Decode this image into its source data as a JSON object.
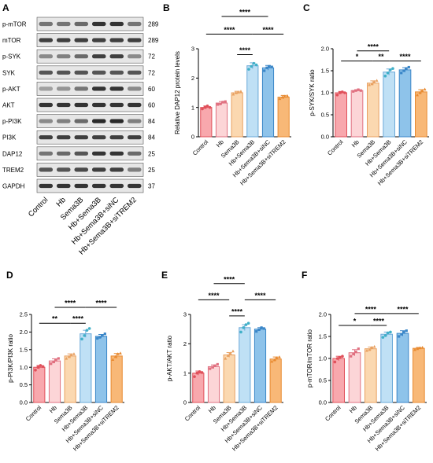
{
  "colors": {
    "fill": [
      "#f8a8ad",
      "#fcd5d7",
      "#fbd8b0",
      "#bfe0f5",
      "#8ec3ea",
      "#f8b877"
    ],
    "stroke": [
      "#e0505a",
      "#e07080",
      "#e8a060",
      "#6aa8d8",
      "#3a86c8",
      "#e88a30"
    ],
    "dot": [
      "#e0505a",
      "#e07080",
      "#e8a060",
      "#40b0c8",
      "#3a86c8",
      "#e88a30"
    ]
  },
  "blot": {
    "letter": "A",
    "rows": [
      {
        "name": "p-mTOR",
        "kda": "289"
      },
      {
        "name": "mTOR",
        "kda": "289"
      },
      {
        "name": "p-SYK",
        "kda": "72"
      },
      {
        "name": "SYK",
        "kda": "72"
      },
      {
        "name": "p-AKT",
        "kda": "60"
      },
      {
        "name": "AKT",
        "kda": "60"
      },
      {
        "name": "p-PI3K",
        "kda": "84"
      },
      {
        "name": "PI3K",
        "kda": "84"
      },
      {
        "name": "DAP12",
        "kda": "25"
      },
      {
        "name": "TREM2",
        "kda": "25"
      },
      {
        "name": "GAPDH",
        "kda": "37"
      }
    ],
    "intensity": [
      [
        0.55,
        0.55,
        0.6,
        0.85,
        0.85,
        0.55
      ],
      [
        0.8,
        0.8,
        0.8,
        0.8,
        0.8,
        0.8
      ],
      [
        0.45,
        0.5,
        0.6,
        0.8,
        0.8,
        0.45
      ],
      [
        0.7,
        0.7,
        0.7,
        0.7,
        0.7,
        0.7
      ],
      [
        0.35,
        0.4,
        0.55,
        0.85,
        0.85,
        0.45
      ],
      [
        0.85,
        0.85,
        0.85,
        0.85,
        0.85,
        0.85
      ],
      [
        0.45,
        0.5,
        0.6,
        0.9,
        0.9,
        0.5
      ],
      [
        0.8,
        0.8,
        0.8,
        0.8,
        0.8,
        0.8
      ],
      [
        0.55,
        0.6,
        0.7,
        0.85,
        0.85,
        0.6
      ],
      [
        0.7,
        0.7,
        0.75,
        0.8,
        0.8,
        0.5
      ],
      [
        0.85,
        0.85,
        0.85,
        0.85,
        0.85,
        0.85
      ]
    ],
    "groups": [
      "Control",
      "Hb",
      "Sema3B",
      "Hb+Sema3B",
      "Hb+Sema3B+siNC",
      "Hb+Sema3B+siTREM2"
    ]
  },
  "chart_data": [
    {
      "letter": "B",
      "type": "bar",
      "ylabel": "Relative DAP12 protein levels",
      "categories": [
        "Control",
        "Hb",
        "Sema3B",
        "Hb+Sema3B",
        "Hb+Sema3B+siNC",
        "Hb+Sema3B+siTREM2"
      ],
      "values": [
        1.0,
        1.15,
        1.5,
        2.42,
        2.35,
        1.35
      ],
      "errors": [
        0.05,
        0.05,
        0.05,
        0.1,
        0.08,
        0.06
      ],
      "points": [
        [
          0.95,
          1.0,
          1.05,
          1.0
        ],
        [
          1.1,
          1.12,
          1.18,
          1.2
        ],
        [
          1.45,
          1.5,
          1.52,
          1.55
        ],
        [
          2.3,
          2.4,
          2.5,
          2.45
        ],
        [
          2.25,
          2.35,
          2.4,
          2.38
        ],
        [
          1.3,
          1.35,
          1.38,
          1.4
        ]
      ],
      "ylim": [
        0,
        3
      ],
      "yticks": [
        "0",
        "1",
        "2",
        "3"
      ],
      "sig": [
        {
          "from": 0,
          "to": 3,
          "label": "****",
          "y": 3.5
        },
        {
          "from": 2,
          "to": 3,
          "label": "****",
          "y": 2.8
        },
        {
          "from": 3,
          "to": 5,
          "label": "****",
          "y": 3.5
        },
        {
          "from": 1,
          "to": 4,
          "label": "****",
          "y": 4.1
        }
      ]
    },
    {
      "letter": "C",
      "type": "bar",
      "ylabel": "p-SYK/SYK ratio",
      "categories": [
        "Control",
        "Hb",
        "Sema3B",
        "Hb+Sema3B",
        "Hb+Sema3B+siNC",
        "Hb+Sema3B+siTREM2"
      ],
      "values": [
        1.0,
        1.05,
        1.22,
        1.47,
        1.52,
        1.02
      ],
      "errors": [
        0.03,
        0.02,
        0.05,
        0.07,
        0.05,
        0.05
      ],
      "points": [
        [
          0.95,
          1.0,
          1.02,
          1.0
        ],
        [
          1.03,
          1.05,
          1.07,
          1.05
        ],
        [
          1.18,
          1.2,
          1.25,
          1.28
        ],
        [
          1.38,
          1.45,
          1.52,
          1.55
        ],
        [
          1.45,
          1.5,
          1.55,
          1.58
        ],
        [
          0.95,
          1.0,
          1.05,
          1.08
        ]
      ],
      "ylim": [
        0,
        2.0
      ],
      "yticks": [
        "0.0",
        "0.5",
        "1.0",
        "1.5",
        "2.0"
      ],
      "sig": [
        {
          "from": 0,
          "to": 2,
          "label": "*",
          "y": 1.72
        },
        {
          "from": 2,
          "to": 3,
          "label": "**",
          "y": 1.72
        },
        {
          "from": 3,
          "to": 5,
          "label": "****",
          "y": 1.72
        },
        {
          "from": 1,
          "to": 3,
          "label": "****",
          "y": 1.95
        }
      ]
    },
    {
      "letter": "D",
      "type": "bar",
      "ylabel": "p-PI3K/PI3K ratio",
      "categories": [
        "Control",
        "Hb",
        "Sema3B",
        "Hb+Sema3B",
        "Hb+Sema3B+siNC",
        "Hb+Sema3B+siTREM2"
      ],
      "values": [
        1.0,
        1.18,
        1.32,
        1.95,
        1.88,
        1.32
      ],
      "errors": [
        0.05,
        0.06,
        0.06,
        0.1,
        0.05,
        0.07
      ],
      "points": [
        [
          0.92,
          1.0,
          1.05,
          1.02
        ],
        [
          1.1,
          1.15,
          1.2,
          1.25
        ],
        [
          1.25,
          1.3,
          1.35,
          1.38
        ],
        [
          1.8,
          1.9,
          2.05,
          2.1
        ],
        [
          1.82,
          1.85,
          1.9,
          1.95
        ],
        [
          1.22,
          1.3,
          1.38,
          1.4
        ]
      ],
      "ylim": [
        0,
        2.5
      ],
      "yticks": [
        "0.0",
        "0.5",
        "1.0",
        "1.5",
        "2.0",
        "2.5"
      ],
      "sig": [
        {
          "from": 0,
          "to": 2,
          "label": "**",
          "y": 2.25
        },
        {
          "from": 2,
          "to": 3,
          "label": "****",
          "y": 2.25
        },
        {
          "from": 1,
          "to": 3,
          "label": "****",
          "y": 2.7
        },
        {
          "from": 3,
          "to": 5,
          "label": "****",
          "y": 2.7
        }
      ]
    },
    {
      "letter": "E",
      "type": "bar",
      "ylabel": "p-AKT/AKT ratio",
      "categories": [
        "Control",
        "Hb",
        "Sema3B",
        "Hb+Sema3B",
        "Hb+Sema3B+siNC",
        "Hb+Sema3B+siTREM2"
      ],
      "values": [
        1.0,
        1.22,
        1.62,
        2.55,
        2.5,
        1.48
      ],
      "errors": [
        0.07,
        0.06,
        0.08,
        0.1,
        0.05,
        0.07
      ],
      "points": [
        [
          0.88,
          1.0,
          1.05,
          1.02
        ],
        [
          1.15,
          1.2,
          1.25,
          1.3
        ],
        [
          1.5,
          1.6,
          1.68,
          1.75
        ],
        [
          2.4,
          2.55,
          2.65,
          2.7
        ],
        [
          2.42,
          2.48,
          2.55,
          2.52
        ],
        [
          1.4,
          1.45,
          1.52,
          1.55
        ]
      ],
      "ylim": [
        0,
        3
      ],
      "yticks": [
        "0",
        "1",
        "2",
        "3"
      ],
      "sig": [
        {
          "from": 0,
          "to": 2,
          "label": "****",
          "y": 3.5
        },
        {
          "from": 2,
          "to": 3,
          "label": "****",
          "y": 2.95
        },
        {
          "from": 3,
          "to": 5,
          "label": "****",
          "y": 3.5
        },
        {
          "from": 1,
          "to": 3,
          "label": "****",
          "y": 4.05
        }
      ]
    },
    {
      "letter": "F",
      "type": "bar",
      "ylabel": "p-mTOR/mTOR ratio",
      "categories": [
        "Control",
        "Hb",
        "Sema3B",
        "Hb+Sema3B",
        "Hb+Sema3B+siNC",
        "Hb+Sema3B+siTREM2"
      ],
      "values": [
        1.0,
        1.13,
        1.22,
        1.55,
        1.57,
        1.23
      ],
      "errors": [
        0.05,
        0.07,
        0.04,
        0.05,
        0.06,
        0.02
      ],
      "points": [
        [
          0.92,
          1.0,
          1.02,
          1.05
        ],
        [
          1.05,
          1.1,
          1.15,
          1.22
        ],
        [
          1.18,
          1.2,
          1.25,
          1.27
        ],
        [
          1.48,
          1.52,
          1.58,
          1.6
        ],
        [
          1.5,
          1.55,
          1.6,
          1.63
        ],
        [
          1.2,
          1.22,
          1.24,
          1.25
        ]
      ],
      "ylim": [
        0,
        2.0
      ],
      "yticks": [
        "0.0",
        "0.5",
        "1.0",
        "1.5",
        "2.0"
      ],
      "sig": [
        {
          "from": 0,
          "to": 2,
          "label": "*",
          "y": 1.75
        },
        {
          "from": 2,
          "to": 3,
          "label": "****",
          "y": 1.75
        },
        {
          "from": 1,
          "to": 3,
          "label": "****",
          "y": 2.02
        },
        {
          "from": 3,
          "to": 5,
          "label": "****",
          "y": 2.02
        }
      ]
    }
  ]
}
